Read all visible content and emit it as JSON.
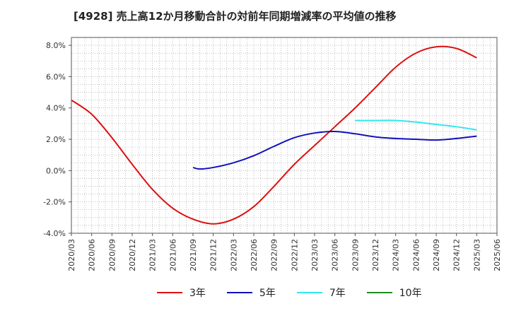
{
  "title": "[4928]  売上高12か月移動合計の対前年同期増減率の平均値の推移",
  "colors": {
    "s3": "#dd1111",
    "s5": "#1111bb",
    "s7": "#33e6ee",
    "s10": "#228b22",
    "grid": "#999999",
    "axis": "#555555"
  },
  "chart_data": {
    "type": "line",
    "title": "[4928]  売上高12か月移動合計の対前年同期増減率の平均値の推移",
    "xlabel": "",
    "ylabel": "",
    "ylim": [
      -4.0,
      8.5
    ],
    "yticks": [
      -4.0,
      -2.0,
      0.0,
      2.0,
      4.0,
      6.0,
      8.0
    ],
    "ytick_labels": [
      "-4.0%",
      "-2.0%",
      "0.0%",
      "2.0%",
      "4.0%",
      "6.0%",
      "8.0%"
    ],
    "xtick_labels": [
      "2020/03",
      "2020/06",
      "2020/09",
      "2020/12",
      "2021/03",
      "2021/06",
      "2021/09",
      "2021/12",
      "2022/03",
      "2022/06",
      "2022/09",
      "2022/12",
      "2023/03",
      "2023/06",
      "2023/09",
      "2023/12",
      "2024/03",
      "2024/06",
      "2024/09",
      "2024/12",
      "2025/03",
      "2025/06"
    ],
    "grid": true,
    "legend_position": "bottom",
    "series": [
      {
        "name": "3年",
        "color": "#dd1111",
        "x": [
          "2020/03",
          "2020/06",
          "2020/09",
          "2020/12",
          "2021/03",
          "2021/06",
          "2021/09",
          "2021/12",
          "2022/03",
          "2022/06",
          "2022/09",
          "2022/12",
          "2023/03",
          "2023/06",
          "2023/09",
          "2023/12",
          "2024/03",
          "2024/06",
          "2024/09",
          "2024/12",
          "2025/03"
        ],
        "values": [
          4.5,
          3.6,
          2.1,
          0.4,
          -1.2,
          -2.4,
          -3.1,
          -3.4,
          -3.1,
          -2.3,
          -1.0,
          0.4,
          1.6,
          2.8,
          4.0,
          5.3,
          6.6,
          7.5,
          7.9,
          7.8,
          7.2
        ]
      },
      {
        "name": "5年",
        "color": "#1111bb",
        "x": [
          "2021/09",
          "2021/10",
          "2021/12",
          "2022/03",
          "2022/06",
          "2022/09",
          "2022/12",
          "2023/03",
          "2023/06",
          "2023/09",
          "2023/12",
          "2024/03",
          "2024/06",
          "2024/09",
          "2024/12",
          "2025/03"
        ],
        "values": [
          0.2,
          0.1,
          0.2,
          0.5,
          0.95,
          1.55,
          2.1,
          2.4,
          2.5,
          2.35,
          2.15,
          2.05,
          2.0,
          1.95,
          2.05,
          2.2
        ]
      },
      {
        "name": "7年",
        "color": "#33e6ee",
        "x": [
          "2023/09",
          "2023/12",
          "2024/03",
          "2024/06",
          "2024/09",
          "2024/12",
          "2025/03"
        ],
        "values": [
          3.2,
          3.2,
          3.2,
          3.1,
          2.95,
          2.8,
          2.6
        ]
      },
      {
        "name": "10年",
        "color": "#228b22",
        "x": [],
        "values": []
      }
    ]
  }
}
